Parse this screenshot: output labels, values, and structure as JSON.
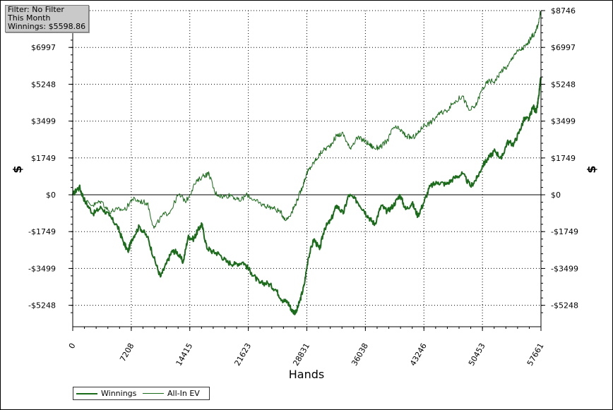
{
  "filter_box": {
    "line1": "Filter: No Filter",
    "line2": "This Month",
    "line3": "Winnings: $5598.86"
  },
  "chart_data": {
    "type": "line",
    "xlabel": "Hands",
    "ylabel": "$",
    "xlim": [
      0,
      57661
    ],
    "ylim": [
      -5600,
      8746
    ],
    "x_ticks": [
      0,
      7208,
      14415,
      21623,
      28831,
      36038,
      43246,
      50453,
      57661
    ],
    "y_ticks": [
      8746,
      6997,
      5248,
      3499,
      1749,
      0,
      -1749,
      -3499,
      -5248
    ],
    "y_tick_labels": [
      "$8746",
      "$6997",
      "$5248",
      "$3499",
      "$1749",
      "$0",
      "-$1749",
      "-$3499",
      "-$5248"
    ],
    "grid": true,
    "zero_line": true,
    "legend_placement": "bottom-left",
    "series": [
      {
        "name": "Winnings",
        "color": "#1a6b1a",
        "width": 2,
        "x": [
          0,
          800,
          1500,
          2500,
          3500,
          4500,
          5500,
          6200,
          6800,
          7300,
          8200,
          9200,
          10000,
          10800,
          11500,
          12200,
          12800,
          13600,
          14200,
          14900,
          15400,
          15900,
          16500,
          17200,
          18000,
          19000,
          20000,
          21000,
          22000,
          23000,
          24000,
          25000,
          25800,
          26500,
          27000,
          27500,
          28000,
          28500,
          29000,
          29700,
          30400,
          31000,
          31800,
          32500,
          33300,
          34000,
          35000,
          35800,
          36500,
          37200,
          38000,
          38700,
          39500,
          40300,
          41000,
          41800,
          42500,
          43200,
          44000,
          45000,
          46000,
          47000,
          48000,
          49000,
          49800,
          50500,
          51300,
          52000,
          52800,
          53500,
          54300,
          55000,
          55600,
          56200,
          56700,
          57100,
          57400,
          57661
        ],
        "values": [
          0,
          400,
          -300,
          -900,
          -600,
          -1000,
          -1500,
          -2200,
          -2700,
          -2100,
          -1500,
          -2000,
          -3000,
          -3900,
          -3300,
          -2700,
          -2700,
          -3200,
          -2000,
          -2100,
          -1700,
          -1400,
          -2500,
          -2700,
          -2800,
          -3200,
          -3300,
          -3200,
          -3700,
          -4200,
          -4200,
          -4500,
          -5000,
          -5100,
          -5500,
          -5600,
          -5000,
          -4300,
          -3000,
          -2100,
          -2600,
          -1600,
          -1200,
          -500,
          -900,
          0,
          -300,
          -700,
          -1100,
          -1400,
          -500,
          -800,
          -500,
          0,
          -700,
          -400,
          -1000,
          -400,
          400,
          600,
          500,
          800,
          1000,
          400,
          800,
          1400,
          1800,
          2100,
          1700,
          2500,
          2400,
          3000,
          3600,
          3600,
          4200,
          3900,
          4700,
          5599
        ]
      },
      {
        "name": "All-In EV",
        "color": "#1a6b1a",
        "width": 1,
        "x": [
          0,
          800,
          1500,
          2500,
          3500,
          4500,
          5500,
          6500,
          7300,
          8200,
          9200,
          10000,
          11000,
          12000,
          13000,
          14000,
          15000,
          16000,
          16800,
          17500,
          18500,
          19500,
          20500,
          21500,
          22500,
          23500,
          24500,
          25500,
          26300,
          27000,
          27700,
          28300,
          28800,
          29300,
          30000,
          30800,
          31600,
          32500,
          33300,
          34100,
          35000,
          35800,
          36500,
          37200,
          38000,
          38800,
          39500,
          40300,
          41000,
          41800,
          42500,
          43200,
          44000,
          45000,
          46000,
          47000,
          48000,
          48800,
          49600,
          50400,
          51200,
          52000,
          52800,
          53600,
          54400,
          55200,
          55900,
          56500,
          57000,
          57300,
          57661
        ],
        "values": [
          0,
          300,
          -300,
          -500,
          -300,
          -800,
          -700,
          -700,
          -200,
          -300,
          -400,
          -1600,
          -1000,
          -800,
          0,
          -300,
          500,
          900,
          1000,
          100,
          -100,
          0,
          -300,
          0,
          -300,
          -500,
          -600,
          -800,
          -1200,
          -800,
          -200,
          400,
          1000,
          1300,
          1700,
          2100,
          2300,
          2800,
          2900,
          2200,
          2700,
          2600,
          2400,
          2200,
          2300,
          2600,
          3200,
          3100,
          2800,
          2700,
          2900,
          3300,
          3400,
          3800,
          4000,
          4400,
          4700,
          4000,
          4200,
          5000,
          5400,
          5400,
          5900,
          6100,
          6700,
          6900,
          7100,
          7500,
          7700,
          8100,
          8746
        ]
      }
    ]
  }
}
